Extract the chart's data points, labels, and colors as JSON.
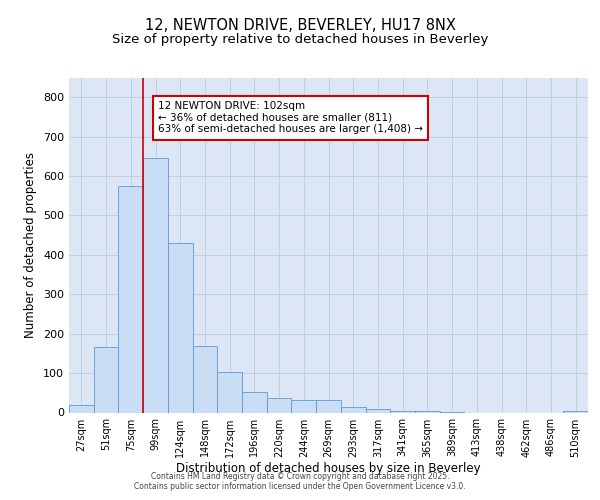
{
  "title_line1": "12, NEWTON DRIVE, BEVERLEY, HU17 8NX",
  "title_line2": "Size of property relative to detached houses in Beverley",
  "xlabel": "Distribution of detached houses by size in Beverley",
  "ylabel": "Number of detached properties",
  "bar_labels": [
    "27sqm",
    "51sqm",
    "75sqm",
    "99sqm",
    "124sqm",
    "148sqm",
    "172sqm",
    "196sqm",
    "220sqm",
    "244sqm",
    "269sqm",
    "293sqm",
    "317sqm",
    "341sqm",
    "365sqm",
    "389sqm",
    "413sqm",
    "438sqm",
    "462sqm",
    "486sqm",
    "510sqm"
  ],
  "bar_values": [
    20,
    165,
    575,
    645,
    430,
    170,
    103,
    52,
    38,
    32,
    32,
    13,
    8,
    3,
    3,
    2,
    0,
    0,
    0,
    0,
    5
  ],
  "bar_color": "#c9ddf5",
  "bar_edge_color": "#5b9bd5",
  "annotation_text": "12 NEWTON DRIVE: 102sqm\n← 36% of detached houses are smaller (811)\n63% of semi-detached houses are larger (1,408) →",
  "annotation_box_color": "white",
  "annotation_box_edge_color": "#cc0000",
  "vline_x": 2.5,
  "vline_color": "#cc0000",
  "ylim": [
    0,
    850
  ],
  "yticks": [
    0,
    100,
    200,
    300,
    400,
    500,
    600,
    700,
    800
  ],
  "grid_color": "#b8cce4",
  "background_color": "#dce6f5",
  "footer_line1": "Contains HM Land Registry data © Crown copyright and database right 2025.",
  "footer_line2": "Contains public sector information licensed under the Open Government Licence v3.0.",
  "title_fontsize": 10.5,
  "subtitle_fontsize": 9.5,
  "tick_label_fontsize": 7,
  "ylabel_fontsize": 8.5,
  "xlabel_fontsize": 8.5,
  "annotation_fontsize": 7.5,
  "footer_fontsize": 5.5
}
